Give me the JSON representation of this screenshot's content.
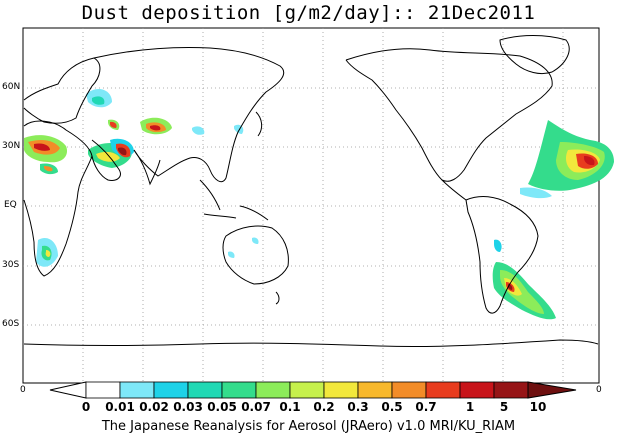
{
  "title": "Dust deposition [g/m2/day]:: 21Dec2011",
  "credit": "The Japanese Reanalysis for Aerosol (JRAero) v1.0 MRI/KU_RIAM",
  "lat_labels": [
    "60N",
    "30N",
    "EQ",
    "30S",
    "60S"
  ],
  "axis_edge_left": "0",
  "axis_edge_right": "0",
  "legend": {
    "labels": [
      "0",
      "0.01",
      "0.02",
      "0.03",
      "0.05",
      "0.07",
      "0.1",
      "0.2",
      "0.3",
      "0.5",
      "0.7",
      "1",
      "5",
      "10"
    ],
    "colors": [
      "#ffffff",
      "#ffffff",
      "#7ee8f8",
      "#1ed2e8",
      "#20d8b4",
      "#34dc8c",
      "#8cec5a",
      "#c6f04c",
      "#f2e83c",
      "#f7b82c",
      "#f28c28",
      "#e83c1e",
      "#c8141a",
      "#961416",
      "#6e1010"
    ]
  },
  "colors": {
    "coast": "#000000",
    "grid": "#888888"
  }
}
